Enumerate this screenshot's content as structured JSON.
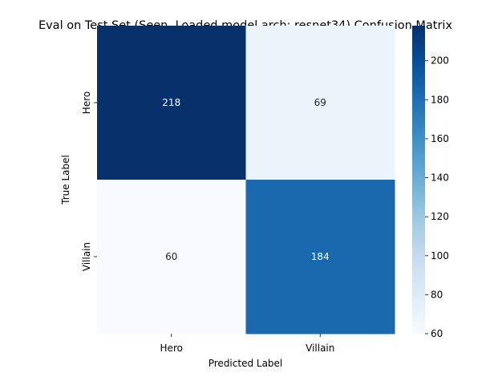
{
  "chart_data": {
    "type": "heatmap",
    "title": "Eval on Test Set (Seen, Loaded model arch: resnet34) Confusion Matrix",
    "xlabel": "Predicted Label",
    "ylabel": "True Label",
    "x_categories": [
      "Hero",
      "Villain"
    ],
    "y_categories": [
      "Hero",
      "Villain"
    ],
    "values": [
      [
        218,
        69
      ],
      [
        60,
        184
      ]
    ],
    "colormap": "Blues",
    "colorbar": {
      "range": [
        60,
        218
      ],
      "ticks": [
        60,
        80,
        100,
        120,
        140,
        160,
        180,
        200
      ],
      "tick_labels": [
        "60",
        "80",
        "100",
        "120",
        "140",
        "160",
        "180",
        "200"
      ]
    }
  }
}
